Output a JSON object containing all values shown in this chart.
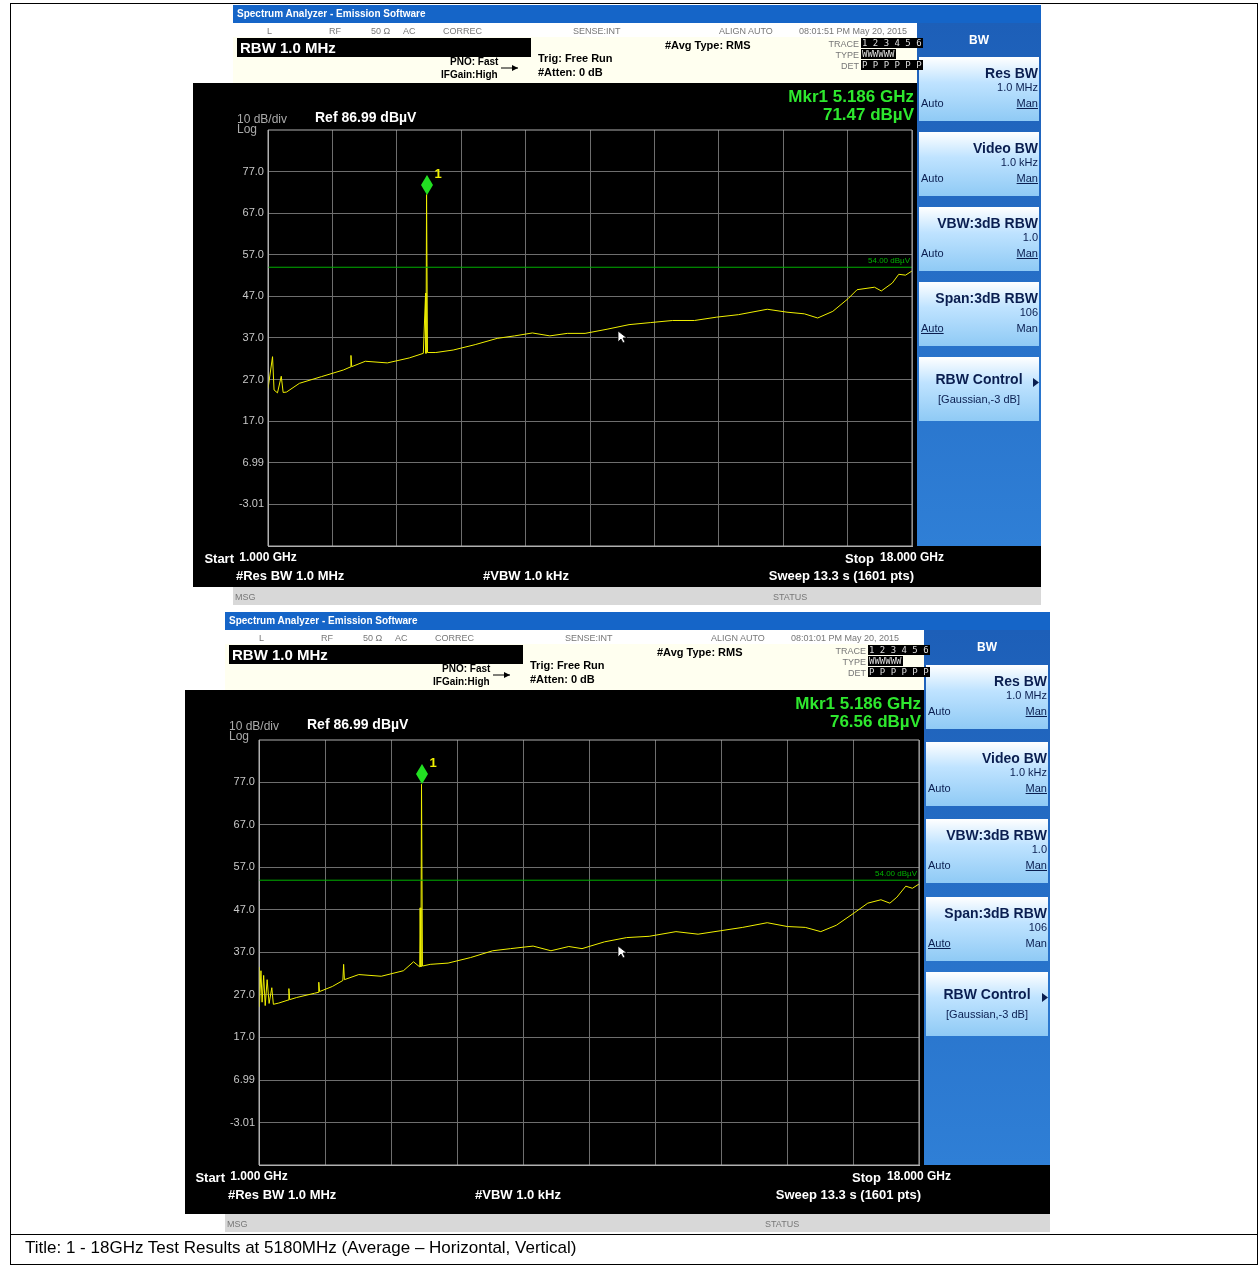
{
  "chart_data": [
    {
      "type": "line",
      "title": "Spectrum Analyzer - Emission Software",
      "xlim": [
        1,
        18
      ],
      "xticks": [
        {
          "value": 1,
          "label": "1.000 GHz"
        },
        {
          "value": 2.7,
          "label": null
        },
        {
          "value": 4.4,
          "label": null
        },
        {
          "value": 6.1,
          "label": null
        },
        {
          "value": 7.8,
          "label": null
        },
        {
          "value": 9.5,
          "label": null
        },
        {
          "value": 11.2,
          "label": null
        },
        {
          "value": 12.9,
          "label": null
        },
        {
          "value": 14.6,
          "label": null
        },
        {
          "value": 16.3,
          "label": null
        },
        {
          "value": 18,
          "label": "18.000 GHz"
        }
      ],
      "ylim": [
        -13.01,
        86.99
      ],
      "yticks": [
        {
          "value": 77,
          "label": "77.0"
        },
        {
          "value": 67,
          "label": "67.0"
        },
        {
          "value": 57,
          "label": "57.0"
        },
        {
          "value": 47,
          "label": "47.0"
        },
        {
          "value": 37,
          "label": "37.0"
        },
        {
          "value": 27,
          "label": "27.0"
        },
        {
          "value": 17,
          "label": "17.0"
        },
        {
          "value": 6.99,
          "label": "6.99"
        },
        {
          "value": -3.01,
          "label": "-3.01"
        }
      ],
      "grid": true,
      "ref_lines": [
        {
          "axis": "y",
          "value": 54,
          "label": "54.00 dBµV",
          "color": "#00b000"
        }
      ],
      "series": [
        {
          "color": "#f0f000",
          "x": [
            1.0,
            1.12,
            1.16,
            1.25,
            1.35,
            1.4,
            1.49,
            1.83,
            2.41,
            2.99,
            3.17,
            3.19,
            3.21,
            3.57,
            4.15,
            4.73,
            5.1,
            5.16,
            5.17,
            5.186,
            5.21,
            5.43,
            5.89,
            6.47,
            7.05,
            7.51,
            7.98,
            8.44,
            8.9,
            9.37,
            9.95,
            10.53,
            11.1,
            11.68,
            12.26,
            12.84,
            13.42,
            14.18,
            14.7,
            15.16,
            15.51,
            15.91,
            16.32,
            16.55,
            17.01,
            17.19,
            17.48,
            17.65,
            17.83,
            18.0
          ],
          "values": [
            24.8,
            32.5,
            24.5,
            23.8,
            27.8,
            23.9,
            24.0,
            26.1,
            27.7,
            29.3,
            30.0,
            32.8,
            30.1,
            31.4,
            31.0,
            32.2,
            33.3,
            47.8,
            33.3,
            71.47,
            33.5,
            33.5,
            34.1,
            35.4,
            36.9,
            37.5,
            38.2,
            37.5,
            38.1,
            38.1,
            39.1,
            40.2,
            40.7,
            41.2,
            41.2,
            42.0,
            42.6,
            43.9,
            43.2,
            42.8,
            41.8,
            43.4,
            46.5,
            48.6,
            49.2,
            48.3,
            50.2,
            52.3,
            52.1,
            53.1
          ]
        }
      ],
      "annotations": [
        {
          "text": "1",
          "x": 5.186,
          "y": 71.47
        },
        "RBW 1.0 MHz",
        "PNO: Fast",
        "IFGain:High",
        "Trig: Free Run",
        "#Atten: 0 dB",
        "#Avg Type: RMS",
        "L",
        "RF",
        "50 Ω",
        "AC",
        "CORREC",
        "SENSE:INT",
        "ALIGN AUTO",
        "08:01:51 PM May 20, 2015",
        "TRACE",
        "1 2 3 4 5 6",
        "TYPE",
        "WWWWWW",
        "DET",
        "P P P P P P",
        "Mkr1 5.186 GHz",
        "71.47 dBµV",
        "10 dB/div",
        "Log",
        "Ref 86.99 dBµV",
        "#Res BW 1.0 MHz",
        "#VBW 1.0 kHz",
        "Sweep  13.3 s (1601 pts)",
        "MSG",
        "STATUS",
        "BW",
        "Res BW",
        "1.0 MHz",
        "Auto",
        "Man",
        "Video BW",
        "1.0 kHz",
        "Auto",
        "Man",
        "VBW:3dB RBW",
        "1.0",
        "Auto",
        "Man",
        "Span:3dB RBW",
        "106",
        "Auto",
        "Man",
        "RBW Control",
        "[Gaussian,-3 dB]",
        "Start",
        "Stop"
      ]
    },
    {
      "type": "line",
      "title": "Spectrum Analyzer - Emission Software",
      "xlim": [
        1,
        18
      ],
      "xticks": [
        {
          "value": 1,
          "label": "1.000 GHz"
        },
        {
          "value": 2.7,
          "label": null
        },
        {
          "value": 4.4,
          "label": null
        },
        {
          "value": 6.1,
          "label": null
        },
        {
          "value": 7.8,
          "label": null
        },
        {
          "value": 9.5,
          "label": null
        },
        {
          "value": 11.2,
          "label": null
        },
        {
          "value": 12.9,
          "label": null
        },
        {
          "value": 14.6,
          "label": null
        },
        {
          "value": 16.3,
          "label": null
        },
        {
          "value": 18,
          "label": "18.000 GHz"
        }
      ],
      "ylim": [
        -13.01,
        86.99
      ],
      "yticks": [
        {
          "value": 77,
          "label": "77.0"
        },
        {
          "value": 67,
          "label": "67.0"
        },
        {
          "value": 57,
          "label": "57.0"
        },
        {
          "value": 47,
          "label": "47.0"
        },
        {
          "value": 37,
          "label": "37.0"
        },
        {
          "value": 27,
          "label": "27.0"
        },
        {
          "value": 17,
          "label": "17.0"
        },
        {
          "value": 6.99,
          "label": "6.99"
        },
        {
          "value": -3.01,
          "label": "-3.01"
        }
      ],
      "grid": true,
      "ref_lines": [
        {
          "axis": "y",
          "value": 54,
          "label": "54.00 dBµV",
          "color": "#00b000"
        }
      ],
      "series": [
        {
          "color": "#f0f000",
          "x": [
            1.0,
            1.01,
            1.05,
            1.08,
            1.12,
            1.16,
            1.21,
            1.26,
            1.33,
            1.37,
            1.51,
            1.75,
            1.77,
            1.79,
            1.97,
            2.43,
            2.52,
            2.54,
            2.56,
            2.89,
            3.16,
            3.18,
            3.2,
            3.57,
            4.15,
            4.72,
            4.98,
            5.14,
            5.15,
            5.17,
            5.186,
            5.21,
            5.41,
            5.87,
            6.45,
            7.02,
            7.48,
            8.06,
            8.52,
            8.98,
            9.32,
            9.9,
            10.47,
            11.05,
            11.74,
            12.31,
            12.88,
            13.46,
            14.09,
            14.61,
            15.07,
            15.47,
            15.87,
            16.33,
            16.68,
            17.02,
            17.25,
            17.43,
            17.66,
            17.83,
            18.0
          ],
          "values": [
            33.5,
            24.3,
            32.7,
            25.3,
            31.6,
            24.5,
            30.6,
            25.0,
            28.7,
            24.8,
            25.1,
            25.8,
            28.5,
            25.9,
            26.4,
            27.4,
            27.6,
            30.0,
            27.8,
            29.0,
            30.4,
            34.2,
            30.6,
            31.8,
            31.4,
            32.7,
            34.8,
            33.6,
            47.5,
            33.6,
            76.56,
            33.8,
            34.2,
            34.5,
            35.8,
            37.4,
            37.9,
            38.5,
            37.4,
            38.4,
            37.9,
            39.5,
            40.5,
            40.8,
            41.9,
            41.3,
            42.1,
            42.9,
            44.0,
            43.1,
            42.9,
            41.9,
            43.4,
            46.3,
            48.6,
            49.4,
            48.6,
            50.0,
            52.6,
            52.1,
            53.1
          ]
        }
      ],
      "annotations": [
        {
          "text": "1",
          "x": 5.186,
          "y": 76.56
        },
        "RBW 1.0 MHz",
        "PNO: Fast",
        "IFGain:High",
        "Trig: Free Run",
        "#Atten: 0 dB",
        "#Avg Type: RMS",
        "L",
        "RF",
        "50 Ω",
        "AC",
        "CORREC",
        "SENSE:INT",
        "ALIGN AUTO",
        "08:01:01 PM May 20, 2015",
        "TRACE",
        "1 2 3 4 5 6",
        "TYPE",
        "WWWWWW",
        "DET",
        "P P P P P P",
        "Mkr1 5.186 GHz",
        "76.56 dBµV",
        "10 dB/div",
        "Log",
        "Ref 86.99 dBµV",
        "#Res BW 1.0 MHz",
        "#VBW 1.0 kHz",
        "Sweep  13.3 s (1601 pts)",
        "MSG",
        "STATUS",
        "BW",
        "Res BW",
        "1.0 MHz",
        "Auto",
        "Man",
        "Video BW",
        "1.0 kHz",
        "Auto",
        "Man",
        "VBW:3dB RBW",
        "1.0",
        "Auto",
        "Man",
        "Span:3dB RBW",
        "106",
        "Auto",
        "Man",
        "RBW Control",
        "[Gaussian,-3 dB]",
        "Start",
        "Stop"
      ]
    },
    {
      "type": "other",
      "title": "Title: 1 - 18GHz Test Results at 5180MHz (Average – Horizontal, Vertical)"
    }
  ]
}
